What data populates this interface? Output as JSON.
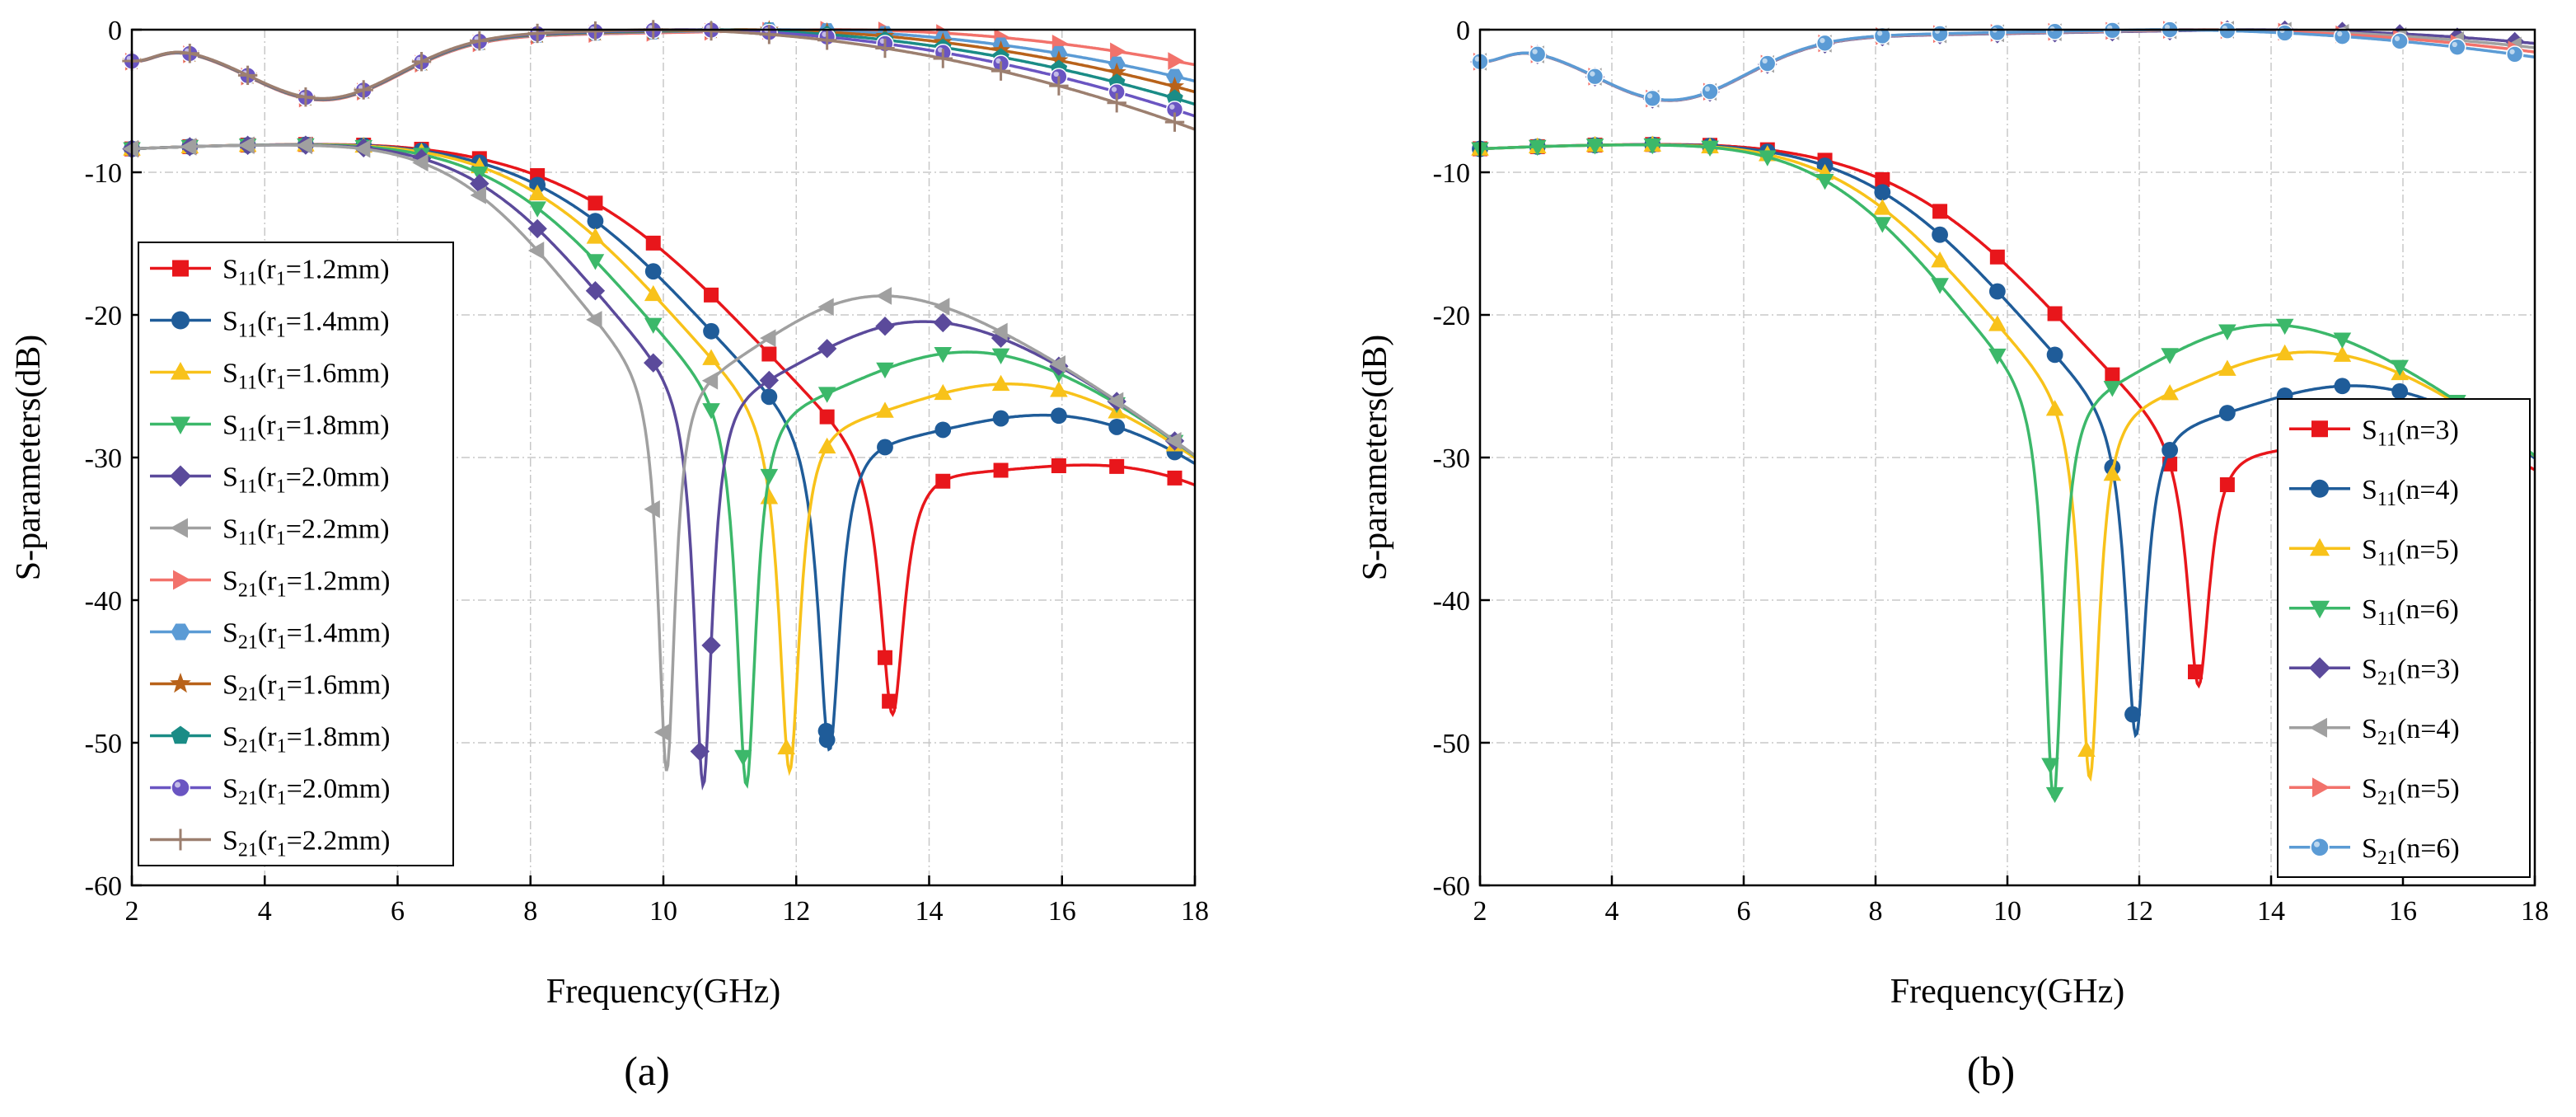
{
  "chart_data": [
    {
      "type": "line",
      "panel_label": "(a)",
      "xlabel": "Frequency(GHz)",
      "ylabel": "S-parameters(dB)",
      "xlim": [
        2,
        18
      ],
      "ylim": [
        -60,
        0
      ],
      "xticks": [
        2,
        4,
        6,
        8,
        10,
        12,
        14,
        16,
        18
      ],
      "yticks": [
        0,
        -10,
        -20,
        -30,
        -40,
        -50,
        -60
      ],
      "grid": "dash-dot",
      "legend_position": "left",
      "series": [
        {
          "name": "S11(r1=1.2mm)",
          "base": "S",
          "sub": "11",
          "paren": "(r",
          "paren_sub": "1",
          "tail": "=1.2mm)",
          "color": "#e8161b",
          "marker": "square",
          "kind": "S11",
          "f0": 13.45,
          "depth": -48,
          "width": 3.6
        },
        {
          "name": "S11(r1=1.4mm)",
          "base": "S",
          "sub": "11",
          "paren": "(r",
          "paren_sub": "1",
          "tail": "=1.4mm)",
          "color": "#1f5c99",
          "marker": "circle",
          "kind": "S11",
          "f0": 12.5,
          "depth": -50.5,
          "width": 3.3
        },
        {
          "name": "S11(r1=1.6mm)",
          "base": "S",
          "sub": "11",
          "paren": "(r",
          "paren_sub": "1",
          "tail": "=1.6mm)",
          "color": "#f8c21a",
          "marker": "triangle-up",
          "kind": "S11",
          "f0": 11.9,
          "depth": -52,
          "width": 3.1
        },
        {
          "name": "S11(r1=1.8mm)",
          "base": "S",
          "sub": "11",
          "paren": "(r",
          "paren_sub": "1",
          "tail": "=1.8mm)",
          "color": "#3cb86a",
          "marker": "triangle-down",
          "kind": "S11",
          "f0": 11.25,
          "depth": -53,
          "width": 2.9
        },
        {
          "name": "S11(r1=2.0mm)",
          "base": "S",
          "sub": "11",
          "paren": "(r",
          "paren_sub": "1",
          "tail": "=2.0mm)",
          "color": "#5b4a9b",
          "marker": "diamond",
          "kind": "S11",
          "f0": 10.6,
          "depth": -53,
          "width": 2.7
        },
        {
          "name": "S11(r1=2.2mm)",
          "base": "S",
          "sub": "11",
          "paren": "(r",
          "paren_sub": "1",
          "tail": "=2.2mm)",
          "color": "#a0a0a0",
          "marker": "triangle-left",
          "kind": "S11",
          "f0": 10.05,
          "depth": -52,
          "width": 2.5
        },
        {
          "name": "S21(r1=1.2mm)",
          "base": "S",
          "sub": "21",
          "paren": "(r",
          "paren_sub": "1",
          "tail": "=1.2mm)",
          "color": "#f2726b",
          "marker": "triangle-right",
          "kind": "S21",
          "peak": 12.5,
          "spread": 5.2
        },
        {
          "name": "S21(r1=1.4mm)",
          "base": "S",
          "sub": "21",
          "paren": "(r",
          "paren_sub": "1",
          "tail": "=1.4mm)",
          "color": "#5b9bd5",
          "marker": "hexagon",
          "kind": "S21",
          "peak": 11.6,
          "spread": 5.0
        },
        {
          "name": "S21(r1=1.6mm)",
          "base": "S",
          "sub": "21",
          "paren": "(r",
          "paren_sub": "1",
          "tail": "=1.6mm)",
          "color": "#b8621a",
          "marker": "star",
          "kind": "S21",
          "peak": 11.1,
          "spread": 4.9
        },
        {
          "name": "S21(r1=1.8mm)",
          "base": "S",
          "sub": "21",
          "paren": "(r",
          "paren_sub": "1",
          "tail": "=1.8mm)",
          "color": "#1a8c86",
          "marker": "pentagon",
          "kind": "S21",
          "peak": 10.6,
          "spread": 4.8
        },
        {
          "name": "S21(r1=2.0mm)",
          "base": "S",
          "sub": "21",
          "paren": "(r",
          "paren_sub": "1",
          "tail": "=2.0mm)",
          "color": "#6a55c2",
          "marker": "sphere",
          "kind": "S21",
          "peak": 10.2,
          "spread": 4.7
        },
        {
          "name": "S21(r1=2.2mm)",
          "base": "S",
          "sub": "21",
          "paren": "(r",
          "paren_sub": "1",
          "tail": "=2.2mm)",
          "color": "#9c7f6f",
          "marker": "plus",
          "kind": "S21",
          "peak": 9.8,
          "spread": 4.6
        }
      ]
    },
    {
      "type": "line",
      "panel_label": "(b)",
      "xlabel": "Frequency(GHz)",
      "ylabel": "S-parameters(dB)",
      "xlim": [
        2,
        18
      ],
      "ylim": [
        -60,
        0
      ],
      "xticks": [
        2,
        4,
        6,
        8,
        10,
        12,
        14,
        16,
        18
      ],
      "yticks": [
        0,
        -10,
        -20,
        -30,
        -40,
        -50,
        -60
      ],
      "grid": "dash-dot",
      "legend_position": "right",
      "series": [
        {
          "name": "S11(n=3)",
          "base": "S",
          "sub": "11",
          "paren": "(n=3)",
          "paren_sub": "",
          "tail": "",
          "color": "#e8161b",
          "marker": "square",
          "kind": "S11",
          "f0": 12.9,
          "depth": -46,
          "width": 3.4
        },
        {
          "name": "S11(n=4)",
          "base": "S",
          "sub": "11",
          "paren": "(n=4)",
          "paren_sub": "",
          "tail": "",
          "color": "#1f5c99",
          "marker": "circle",
          "kind": "S11",
          "f0": 11.95,
          "depth": -49.5,
          "width": 3.1
        },
        {
          "name": "S11(n=5)",
          "base": "S",
          "sub": "11",
          "paren": "(n=5)",
          "paren_sub": "",
          "tail": "",
          "color": "#f8c21a",
          "marker": "triangle-up",
          "kind": "S11",
          "f0": 11.25,
          "depth": -52.5,
          "width": 2.9
        },
        {
          "name": "S11(n=6)",
          "base": "S",
          "sub": "11",
          "paren": "(n=6)",
          "paren_sub": "",
          "tail": "",
          "color": "#3cb86a",
          "marker": "triangle-down",
          "kind": "S11",
          "f0": 10.7,
          "depth": -54,
          "width": 2.7
        },
        {
          "name": "S21(n=3)",
          "base": "S",
          "sub": "21",
          "paren": "(n=3)",
          "paren_sub": "",
          "tail": "",
          "color": "#5b4a9b",
          "marker": "diamond",
          "kind": "S21",
          "peak": 13.5,
          "spread": 6.8
        },
        {
          "name": "S21(n=4)",
          "base": "S",
          "sub": "21",
          "paren": "(n=4)",
          "paren_sub": "",
          "tail": "",
          "color": "#a0a0a0",
          "marker": "triangle-left",
          "kind": "S21",
          "peak": 13.0,
          "spread": 6.6
        },
        {
          "name": "S21(n=5)",
          "base": "S",
          "sub": "21",
          "paren": "(n=5)",
          "paren_sub": "",
          "tail": "",
          "color": "#f2726b",
          "marker": "triangle-right",
          "kind": "S21",
          "peak": 12.6,
          "spread": 6.4
        },
        {
          "name": "S21(n=6)",
          "base": "S",
          "sub": "21",
          "paren": "(n=6)",
          "paren_sub": "",
          "tail": "",
          "color": "#5b9bd5",
          "marker": "sphere",
          "kind": "S21",
          "peak": 12.2,
          "spread": 6.2
        }
      ]
    }
  ]
}
